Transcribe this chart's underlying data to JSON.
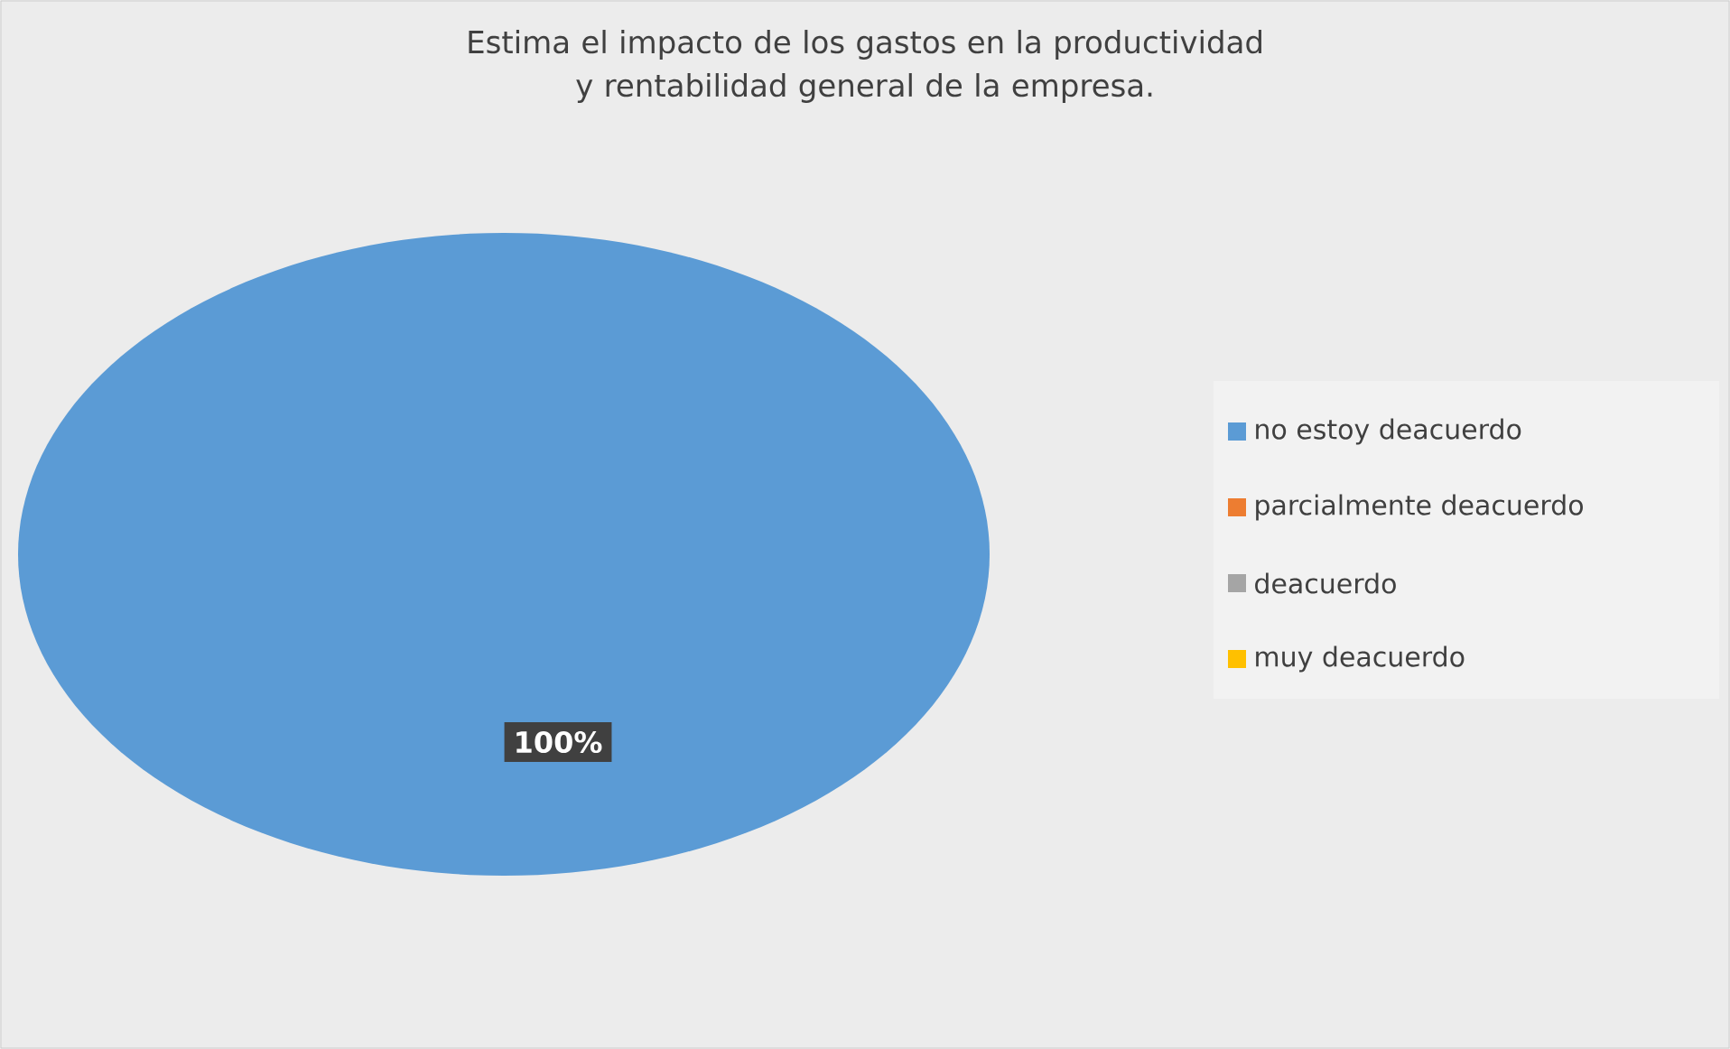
{
  "chart_data": {
    "type": "pie",
    "title": "Estima el impacto de los gastos en la productividad y rentabilidad general de la empresa.",
    "categories": [
      "no estoy deacuerdo",
      "parcialmente deacuerdo",
      "deacuerdo",
      "muy deacuerdo"
    ],
    "values": [
      100,
      0,
      0,
      0
    ],
    "colors": [
      "#5b9bd5",
      "#ed7d31",
      "#a5a5a5",
      "#ffc000"
    ],
    "value_labels": [
      "100%",
      null,
      null,
      null
    ],
    "legend": "right"
  }
}
